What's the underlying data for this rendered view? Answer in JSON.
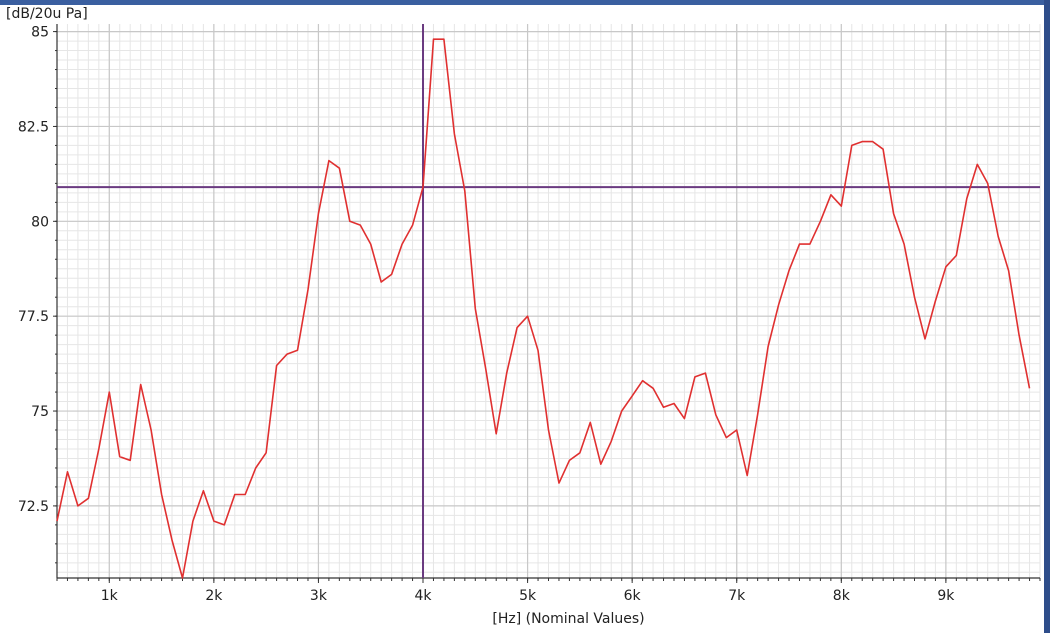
{
  "chart_data": {
    "type": "line",
    "ylabel": "[dB/20u Pa]",
    "xlabel": "[Hz] (Nominal Values)",
    "xlim": [
      500,
      9900
    ],
    "ylim": [
      70.6,
      85.2
    ],
    "x_ticks": [
      1000,
      2000,
      3000,
      4000,
      5000,
      6000,
      7000,
      8000,
      9000
    ],
    "x_tick_labels": [
      "1k",
      "2k",
      "3k",
      "4k",
      "5k",
      "6k",
      "7k",
      "8k",
      "9k"
    ],
    "y_ticks": [
      72.5,
      75,
      77.5,
      80,
      82.5,
      85
    ],
    "y_tick_labels": [
      "72.5",
      "75",
      "77.5",
      "80",
      "82.5",
      "85"
    ],
    "grid": true,
    "colors": {
      "series": "#e03030",
      "cursor": "#6a3a80",
      "grid_major": "#c8c8c8",
      "grid_minor": "#e6e6e6"
    },
    "cursor": {
      "x": 4000,
      "y": 80.9
    },
    "series": [
      {
        "x": [
          500,
          600,
          700,
          800,
          900,
          1000,
          1100,
          1200,
          1300,
          1400,
          1500,
          1600,
          1700,
          1800,
          1900,
          2000,
          2100,
          2200,
          2300,
          2400,
          2500,
          2600,
          2700,
          2800,
          2900,
          3000,
          3100,
          3200,
          3300,
          3400,
          3500,
          3600,
          3700,
          3800,
          3900,
          4000,
          4100,
          4200,
          4300,
          4400,
          4500,
          4600,
          4700,
          4800,
          4900,
          5000,
          5100,
          5200,
          5300,
          5400,
          5500,
          5600,
          5700,
          5800,
          5900,
          6000,
          6100,
          6200,
          6300,
          6400,
          6500,
          6600,
          6700,
          6800,
          6900,
          7000,
          7100,
          7200,
          7300,
          7400,
          7500,
          7600,
          7700,
          7800,
          7900,
          8000,
          8100,
          8200,
          8300,
          8400,
          8500,
          8600,
          8700,
          8800,
          8900,
          9000,
          9100,
          9200,
          9300,
          9400,
          9500,
          9600,
          9700,
          9800
        ],
        "values": [
          72.1,
          73.4,
          72.5,
          72.7,
          74.0,
          75.5,
          73.8,
          73.7,
          75.7,
          74.5,
          72.8,
          71.6,
          70.6,
          72.1,
          72.9,
          72.1,
          72.0,
          72.8,
          72.8,
          73.5,
          73.9,
          76.2,
          76.5,
          76.6,
          78.2,
          80.2,
          81.6,
          81.4,
          80.0,
          79.9,
          79.4,
          78.4,
          78.6,
          79.4,
          79.9,
          80.9,
          84.8,
          84.8,
          82.3,
          80.8,
          77.7,
          76.1,
          74.4,
          76.0,
          77.2,
          77.5,
          76.6,
          74.5,
          73.1,
          73.7,
          73.9,
          74.7,
          73.6,
          74.2,
          75.0,
          75.4,
          75.8,
          75.6,
          75.1,
          75.2,
          74.8,
          75.9,
          76.0,
          74.9,
          74.3,
          74.5,
          73.3,
          74.9,
          76.7,
          77.8,
          78.7,
          79.4,
          79.4,
          80.0,
          80.7,
          80.4,
          82.0,
          82.1,
          82.1,
          81.9,
          80.2,
          79.4,
          78.0,
          76.9,
          77.9,
          78.8,
          79.1,
          80.6,
          81.5,
          81.0,
          79.6,
          78.7,
          77.0,
          75.6
        ]
      }
    ]
  }
}
